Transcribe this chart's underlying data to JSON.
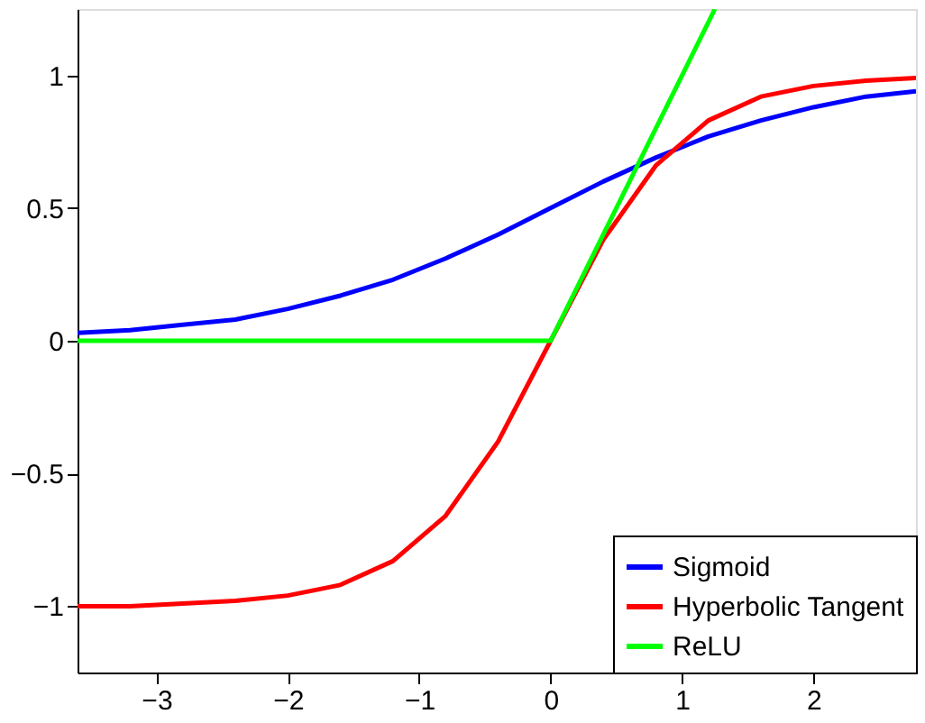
{
  "chart_data": {
    "type": "line",
    "xlim": [
      -3.6,
      2.78
    ],
    "ylim": [
      -1.25,
      1.25
    ],
    "xticks": [
      -3,
      -2,
      -1,
      0,
      1,
      2
    ],
    "yticks": [
      -1,
      -0.5,
      0,
      0.5,
      1
    ],
    "grid": false,
    "legend": "bottom right",
    "line_style": "solid",
    "marker": "none",
    "series": [
      {
        "name": "Sigmoid",
        "color": "#0000ff",
        "x": [
          -3.6,
          -3.2,
          -2.8,
          -2.4,
          -2,
          -1.6,
          -1.2,
          -0.8,
          -0.4,
          0,
          0.4,
          0.8,
          1.2,
          1.6,
          2,
          2.4,
          2.78
        ],
        "values": [
          0.03,
          0.04,
          0.06,
          0.08,
          0.12,
          0.17,
          0.23,
          0.31,
          0.4,
          0.5,
          0.6,
          0.69,
          0.77,
          0.83,
          0.88,
          0.92,
          0.94
        ]
      },
      {
        "name": "Hyperbolic Tangent",
        "color": "#ff0000",
        "x": [
          -3.6,
          -3.2,
          -2.8,
          -2.4,
          -2,
          -1.6,
          -1.2,
          -0.8,
          -0.4,
          0,
          0.4,
          0.8,
          1.2,
          1.6,
          2,
          2.4,
          2.78
        ],
        "values": [
          -1.0,
          -1.0,
          -0.99,
          -0.98,
          -0.96,
          -0.92,
          -0.83,
          -0.66,
          -0.38,
          0,
          0.38,
          0.66,
          0.83,
          0.92,
          0.96,
          0.98,
          0.99
        ]
      },
      {
        "name": "ReLU",
        "color": "#00ff00",
        "x": [
          -3.6,
          0,
          1.25
        ],
        "values": [
          0,
          0,
          1.25
        ]
      }
    ]
  }
}
